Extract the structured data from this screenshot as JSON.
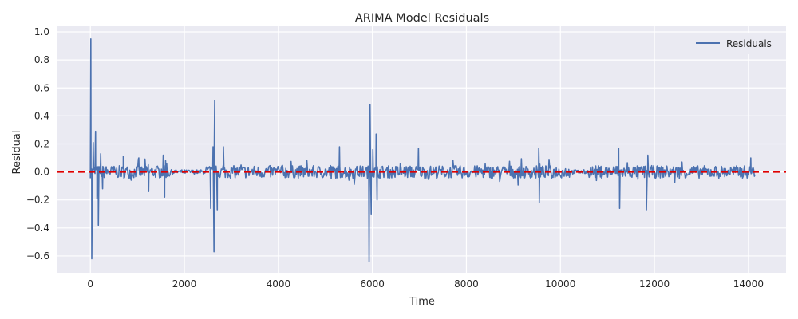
{
  "chart_data": {
    "type": "line",
    "title": "ARIMA Model Residuals",
    "xlabel": "Time",
    "ylabel": "Residual",
    "xlim": [
      -700,
      14800
    ],
    "ylim": [
      -0.72,
      1.04
    ],
    "xticks": [
      0,
      2000,
      4000,
      6000,
      8000,
      10000,
      12000,
      14000
    ],
    "xtick_labels": [
      "0",
      "2000",
      "4000",
      "6000",
      "8000",
      "10000",
      "12000",
      "14000"
    ],
    "yticks": [
      -0.6,
      -0.4,
      -0.2,
      0.0,
      0.2,
      0.4,
      0.6,
      0.8,
      1.0
    ],
    "ytick_labels": [
      "−0.6",
      "−0.4",
      "−0.2",
      "0.0",
      "0.2",
      "0.4",
      "0.6",
      "0.8",
      "1.0"
    ],
    "grid": true,
    "legend_position": "top-right",
    "reference_line": {
      "y": 0.0,
      "style": "dashed",
      "color": "#e00000"
    },
    "series": [
      {
        "name": "Residuals",
        "color": "#4c72b0",
        "x_start": 0,
        "x_end": 14150,
        "baseline_amplitude": 0.045,
        "spikes": [
          {
            "x": 10,
            "y": 0.95
          },
          {
            "x": 30,
            "y": -0.62
          },
          {
            "x": 60,
            "y": 0.21
          },
          {
            "x": 110,
            "y": 0.29
          },
          {
            "x": 140,
            "y": -0.19
          },
          {
            "x": 170,
            "y": -0.38
          },
          {
            "x": 220,
            "y": 0.13
          },
          {
            "x": 260,
            "y": -0.12
          },
          {
            "x": 700,
            "y": 0.11
          },
          {
            "x": 1030,
            "y": 0.1
          },
          {
            "x": 1240,
            "y": -0.14
          },
          {
            "x": 1550,
            "y": 0.12
          },
          {
            "x": 1580,
            "y": -0.18
          },
          {
            "x": 1600,
            "y": 0.08
          },
          {
            "x": 2560,
            "y": -0.26
          },
          {
            "x": 2610,
            "y": 0.18
          },
          {
            "x": 2630,
            "y": -0.57
          },
          {
            "x": 2645,
            "y": 0.51
          },
          {
            "x": 2700,
            "y": -0.27
          },
          {
            "x": 2830,
            "y": 0.18
          },
          {
            "x": 5300,
            "y": 0.18
          },
          {
            "x": 5930,
            "y": -0.64
          },
          {
            "x": 5950,
            "y": 0.48
          },
          {
            "x": 5975,
            "y": -0.3
          },
          {
            "x": 6010,
            "y": 0.16
          },
          {
            "x": 6080,
            "y": 0.27
          },
          {
            "x": 6100,
            "y": -0.2
          },
          {
            "x": 6980,
            "y": 0.17
          },
          {
            "x": 9540,
            "y": 0.17
          },
          {
            "x": 9550,
            "y": -0.22
          },
          {
            "x": 11240,
            "y": 0.17
          },
          {
            "x": 11260,
            "y": -0.26
          },
          {
            "x": 11830,
            "y": -0.27
          },
          {
            "x": 11860,
            "y": 0.12
          },
          {
            "x": 14050,
            "y": 0.1
          }
        ],
        "quiet_segments": [
          [
            1700,
            2450
          ],
          [
            10200,
            10600
          ]
        ]
      }
    ]
  }
}
